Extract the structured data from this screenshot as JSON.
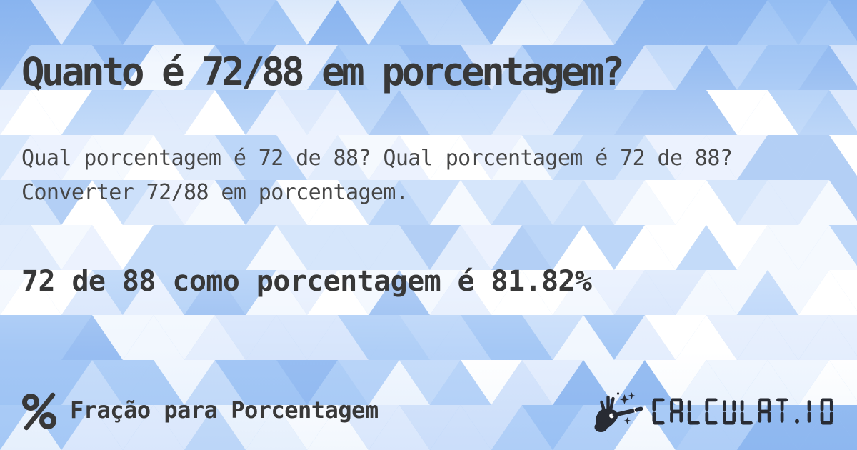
{
  "card": {
    "title": "Quanto é 72/88 em porcentagem?",
    "description": "Qual porcentagem é 72 de 88? Qual porcentagem é 72 de 88? Converter 72/88 em porcentagem.",
    "answer": "72 de 88 como porcentagem é 81.82%"
  },
  "footer": {
    "category_label": "Fração para Porcentagem",
    "brand": "CALCULAT.IO",
    "icons": {
      "category": "percent-icon",
      "brand": "hand-magic-wand-icon"
    }
  },
  "theme": {
    "heading_color": "#383838",
    "body_color": "#474747",
    "logo_color": "#282b33",
    "background_base": "#9ec5f5",
    "pattern_palette": [
      "#8cb6f0",
      "#9ac1f4",
      "#a6c9f6",
      "#b2d0f8",
      "#c1d9f9",
      "#d2e2fb",
      "#e2ecfd",
      "#f0f6fe",
      "#ffffff"
    ]
  }
}
